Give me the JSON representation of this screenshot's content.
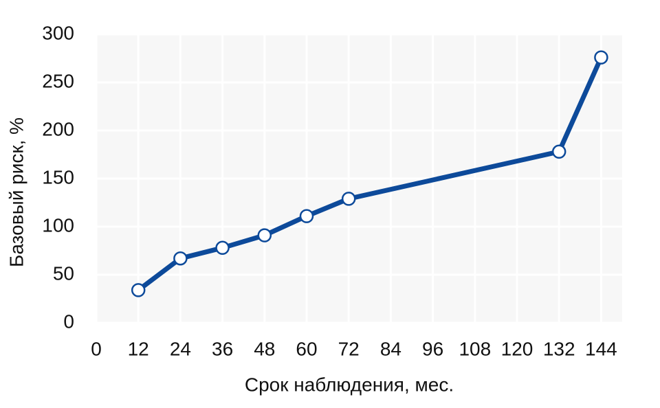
{
  "chart_data": {
    "type": "line",
    "x_label": "Срок наблюдения, мес.",
    "y_label": "Базовый риск, %",
    "x": [
      12,
      24,
      36,
      48,
      60,
      72,
      132,
      144
    ],
    "series": [
      {
        "name": "Базовый риск",
        "color": "#0d4a9a",
        "values": [
          34,
          67,
          78,
          91,
          111,
          129,
          178,
          276
        ]
      }
    ],
    "xlim": [
      0,
      150
    ],
    "xticks": [
      0,
      12,
      24,
      36,
      48,
      60,
      72,
      84,
      96,
      108,
      120,
      132,
      144
    ],
    "ylim": [
      0,
      300
    ],
    "yticks": [
      0,
      50,
      100,
      150,
      200,
      250,
      300
    ],
    "grid": true
  }
}
